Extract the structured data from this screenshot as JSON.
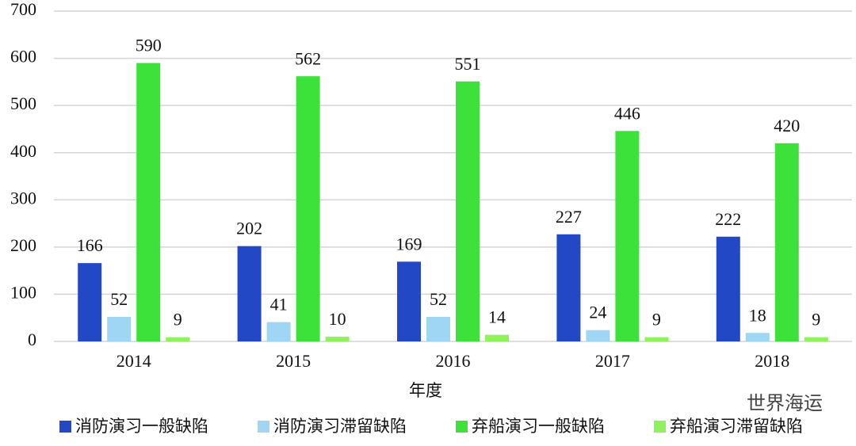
{
  "chart_data": {
    "type": "bar",
    "x_label": "年度",
    "watermark": "世界海运",
    "categories": [
      "2014",
      "2015",
      "2016",
      "2017",
      "2018"
    ],
    "series": [
      {
        "name": "消防演习一般缺陷",
        "color": "#2348c6",
        "values": [
          166,
          202,
          169,
          227,
          222
        ]
      },
      {
        "name": "消防演习滞留缺陷",
        "color": "#9fd6f4",
        "values": [
          52,
          41,
          52,
          24,
          18
        ]
      },
      {
        "name": "弃船演习一般缺陷",
        "color": "#3ce23a",
        "values": [
          590,
          562,
          551,
          446,
          420
        ]
      },
      {
        "name": "弃船演习滞留缺陷",
        "color": "#8ef25c",
        "values": [
          9,
          10,
          14,
          9,
          9
        ]
      }
    ],
    "ylim": [
      0,
      700
    ],
    "yticks": [
      0,
      100,
      200,
      300,
      400,
      500,
      600,
      700
    ],
    "grid": true
  }
}
